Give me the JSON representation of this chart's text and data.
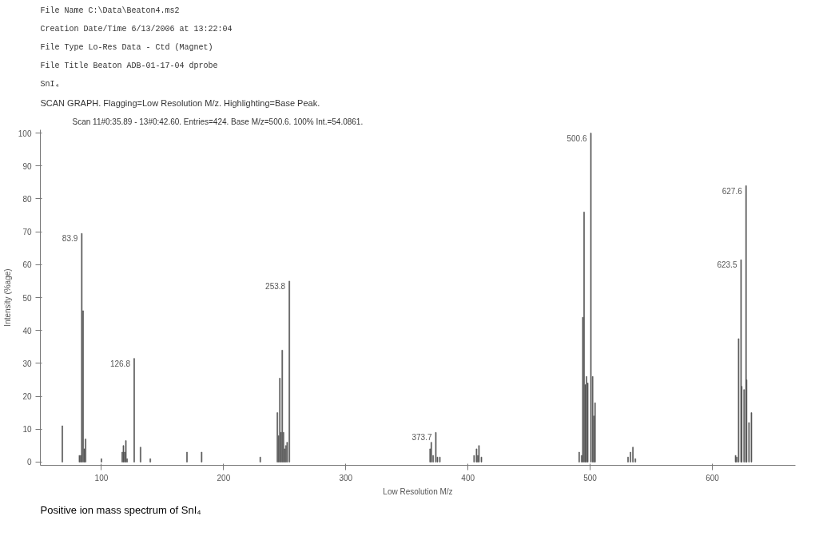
{
  "chart_data": {
    "type": "bar",
    "title": "SCAN GRAPH. Flagging=Low Resolution M/z. Highlighting=Base Peak.",
    "subtitle": "Scan 11#0:35.89 - 13#0:42.60. Entries=424. Base M/z=500.6. 100% Int.=54.0861.",
    "xlabel": "Low Resolution M/z",
    "ylabel": "Intensity (%age)",
    "x": [
      68,
      82,
      83,
      83.9,
      85,
      86,
      87,
      100,
      117,
      118,
      119,
      120,
      121,
      126.8,
      132,
      140,
      170,
      182,
      230,
      244,
      245,
      246,
      247,
      248,
      249,
      250,
      251,
      252,
      253.8,
      369,
      370,
      371.5,
      373.7,
      375,
      377,
      405,
      407,
      408,
      409,
      411,
      491,
      493,
      494,
      495,
      496,
      497,
      498,
      500.6,
      502,
      503,
      504,
      531,
      533,
      535,
      537,
      619,
      620,
      621.5,
      623.5,
      624,
      626,
      627.6,
      628,
      630,
      632
    ],
    "values": [
      11,
      2,
      2,
      69.5,
      46,
      4,
      7,
      1,
      3,
      5,
      3,
      6.5,
      1,
      31.5,
      4.5,
      1,
      3,
      3,
      1.5,
      15,
      8,
      25.5,
      9,
      34,
      9,
      4,
      5,
      6,
      55,
      4,
      6,
      2,
      9,
      1.5,
      1.5,
      2,
      4,
      2,
      5,
      1.5,
      3,
      2,
      44,
      76,
      23.5,
      26,
      24,
      100,
      26,
      14,
      18,
      1.5,
      3,
      4.5,
      1,
      2,
      1.5,
      37.5,
      61.5,
      23,
      22,
      84,
      25,
      12,
      15
    ],
    "color": "#555555",
    "xlim": [
      50,
      668
    ],
    "ylim": [
      -1,
      101
    ],
    "xticks": [
      100,
      200,
      300,
      400,
      500,
      600
    ],
    "yticks": [
      0,
      10,
      20,
      30,
      40,
      50,
      60,
      70,
      80,
      90,
      100
    ],
    "grid": false,
    "annotations": [
      {
        "text": "83.9",
        "x": 83.9,
        "y": 69.5
      },
      {
        "text": "126.8",
        "x": 126.8,
        "y": 31.5
      },
      {
        "text": "253.8",
        "x": 253.8,
        "y": 55
      },
      {
        "text": "373.7",
        "x": 373.7,
        "y": 9
      },
      {
        "text": "500.6",
        "x": 500.6,
        "y": 100
      },
      {
        "text": "623.5",
        "x": 623.5,
        "y": 61.5
      },
      {
        "text": "627.6",
        "x": 627.6,
        "y": 84
      },
      "File Name            C:\\Data\\Beaton4.ms2",
      "Creation Date/Time   6/13/2006 at 13:22:04",
      "File Type            Lo-Res Data - Ctd (Magnet)",
      "File Title           Beaton    ADB-01-17-04      dprobe",
      "SnI₄",
      "Positive ion mass spectrum of SnI₄"
    ]
  }
}
